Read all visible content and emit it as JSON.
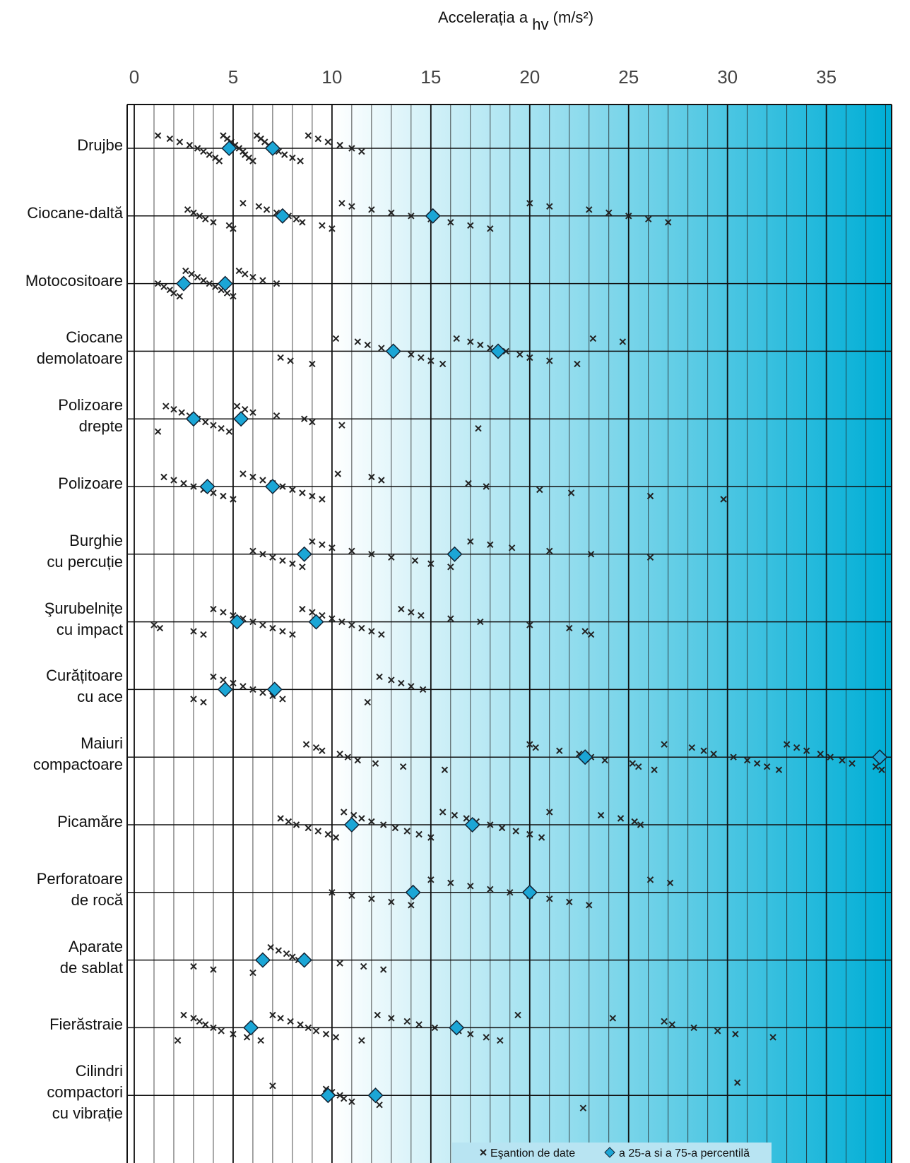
{
  "chart_data": {
    "type": "strip",
    "x_label": {
      "main": "Accelerația a",
      "sub": "hv",
      "unit": "(m/s²)"
    },
    "xlim": [
      0,
      38.3
    ],
    "xticks": [
      0,
      5,
      10,
      15,
      20,
      25,
      30,
      35
    ],
    "xgrid": [
      0,
      1,
      2,
      3,
      4,
      5,
      6,
      7,
      8,
      9,
      10,
      11,
      12,
      13,
      14,
      15,
      16,
      17,
      18,
      19,
      20,
      21,
      22,
      23,
      24,
      25,
      26,
      27,
      28,
      29,
      30,
      31,
      32,
      33,
      34,
      35,
      36,
      37,
      38
    ],
    "categories": [
      "Drujbe",
      "Ciocane-daltă",
      "Motocositoare",
      "Ciocane\ndemolatoare",
      "Polizoare\ndrepte",
      "Polizoare",
      "Burghie\ncu percuție",
      "Şurubelnițe\ncu impact",
      "Curățitoare\ncu ace",
      "Maiuri\ncompactoare",
      "Picamăre",
      "Perforatoare\nde rocă",
      "Aparate\nde sablat",
      "Fierăstraie",
      "Cilindri\ncompactori\ncu vibrație"
    ],
    "samples": [
      [
        1.2,
        1.8,
        2.3,
        2.8,
        3.2,
        3.5,
        3.8,
        4.1,
        4.3,
        4.5,
        4.7,
        4.9,
        5.1,
        5.3,
        5.5,
        5.6,
        5.8,
        6.0,
        6.2,
        6.4,
        6.6,
        6.8,
        7.0,
        7.3,
        7.6,
        8.0,
        8.4,
        8.8,
        9.3,
        9.8,
        10.4,
        11.0,
        11.5
      ],
      [
        2.7,
        3.0,
        3.3,
        3.6,
        4.0,
        4.8,
        5.0,
        5.5,
        6.3,
        6.7,
        7.2,
        7.8,
        8.2,
        8.5,
        9.5,
        10.0,
        10.5,
        11.0,
        12.0,
        13.0,
        14.0,
        15.0,
        16.0,
        17.0,
        18.0,
        20.0,
        21.0,
        23.0,
        24.0,
        25.0,
        26.0,
        27.0
      ],
      [
        1.2,
        1.5,
        1.8,
        2.0,
        2.3,
        2.6,
        2.9,
        3.2,
        3.5,
        3.8,
        4.1,
        4.4,
        4.7,
        5.0,
        5.3,
        5.6,
        6.0,
        6.5,
        7.2
      ],
      [
        7.4,
        7.9,
        9.0,
        10.2,
        11.3,
        11.8,
        12.5,
        13.0,
        14.0,
        14.5,
        15.0,
        15.6,
        16.3,
        17.0,
        17.5,
        18.0,
        18.8,
        19.5,
        20.0,
        21.0,
        22.4,
        23.2,
        24.7
      ],
      [
        1.2,
        1.6,
        2.0,
        2.4,
        2.8,
        3.2,
        3.6,
        4.0,
        4.4,
        4.8,
        5.2,
        5.6,
        6.0,
        7.2,
        8.6,
        9.0,
        10.5,
        17.4
      ],
      [
        1.5,
        2.0,
        2.5,
        3.0,
        3.5,
        4.0,
        4.5,
        5.0,
        5.5,
        6.0,
        6.5,
        7.0,
        7.5,
        8.0,
        8.5,
        9.0,
        9.5,
        10.3,
        12.0,
        12.5,
        16.9,
        17.8,
        20.5,
        22.1,
        26.1,
        29.8
      ],
      [
        6.0,
        6.5,
        7.0,
        7.5,
        8.0,
        8.5,
        9.0,
        9.5,
        10.0,
        11.0,
        12.0,
        13.0,
        14.2,
        15.0,
        16.0,
        17.0,
        18.0,
        19.1,
        21.0,
        23.1,
        26.1
      ],
      [
        1.0,
        1.3,
        3.0,
        3.5,
        4.0,
        4.5,
        5.0,
        5.5,
        6.0,
        6.5,
        7.0,
        7.5,
        8.0,
        8.5,
        9.0,
        9.5,
        10.0,
        10.5,
        11.0,
        11.5,
        12.0,
        12.5,
        13.5,
        14.0,
        14.5,
        16.0,
        17.5,
        20.0,
        22.0,
        22.8,
        23.1
      ],
      [
        3.0,
        3.5,
        4.0,
        4.5,
        5.0,
        5.5,
        6.0,
        6.5,
        7.0,
        7.5,
        11.8,
        12.4,
        13.0,
        13.5,
        14.0,
        14.6
      ],
      [
        8.7,
        9.2,
        9.5,
        10.4,
        10.8,
        11.3,
        12.2,
        13.6,
        15.7,
        20.0,
        20.3,
        21.5,
        22.5,
        23.1,
        23.8,
        25.2,
        25.5,
        26.3,
        26.8,
        28.2,
        28.8,
        29.3,
        30.3,
        31.0,
        31.5,
        32.0,
        32.6,
        33.0,
        33.5,
        34.0,
        34.7,
        35.2,
        35.8,
        36.3,
        37.5,
        37.8
      ],
      [
        7.4,
        7.8,
        8.2,
        8.8,
        9.3,
        9.8,
        10.2,
        10.6,
        11.1,
        11.5,
        12.0,
        12.6,
        13.2,
        13.8,
        14.4,
        15.0,
        15.6,
        16.2,
        16.8,
        17.3,
        18.0,
        18.6,
        19.3,
        20.0,
        20.6,
        21.0,
        23.6,
        24.6,
        25.3,
        25.6
      ],
      [
        10.0,
        11.0,
        12.0,
        13.0,
        14.0,
        15.0,
        16.0,
        17.0,
        18.0,
        19.0,
        20.0,
        21.0,
        22.0,
        23.0,
        26.1,
        27.1
      ],
      [
        3.0,
        4.0,
        6.0,
        6.9,
        7.3,
        7.7,
        8.0,
        8.3,
        10.4,
        11.6,
        12.6
      ],
      [
        2.2,
        2.5,
        3.0,
        3.3,
        3.6,
        4.0,
        4.4,
        5.0,
        5.7,
        6.4,
        7.0,
        7.4,
        7.9,
        8.4,
        8.8,
        9.2,
        9.7,
        10.2,
        11.5,
        12.3,
        13.0,
        13.8,
        14.4,
        15.2,
        16.4,
        17.0,
        17.8,
        18.5,
        19.4,
        24.2,
        26.8,
        27.2,
        28.3,
        29.5,
        30.4,
        32.3
      ],
      [
        7.0,
        9.7,
        10.0,
        10.4,
        10.6,
        11.0,
        12.4,
        22.7,
        30.5
      ]
    ],
    "p25": [
      4.8,
      7.5,
      2.5,
      13.1,
      3.0,
      3.7,
      8.6,
      5.2,
      4.6,
      22.8,
      11.0,
      14.1,
      6.5,
      5.9,
      9.8
    ],
    "p75": [
      7.0,
      15.1,
      4.6,
      18.4,
      5.4,
      7.0,
      16.2,
      9.2,
      7.1,
      37.7,
      17.1,
      20.0,
      8.6,
      16.3,
      12.2
    ],
    "sample_color": "#222222",
    "percentile_color": "#1ba6d6",
    "gradient_colors": [
      "#ffffff",
      "#00aed6"
    ],
    "legend": {
      "samples": "Eşantion de date",
      "percentiles": "a 25-a si a 75-a percentilă"
    }
  }
}
